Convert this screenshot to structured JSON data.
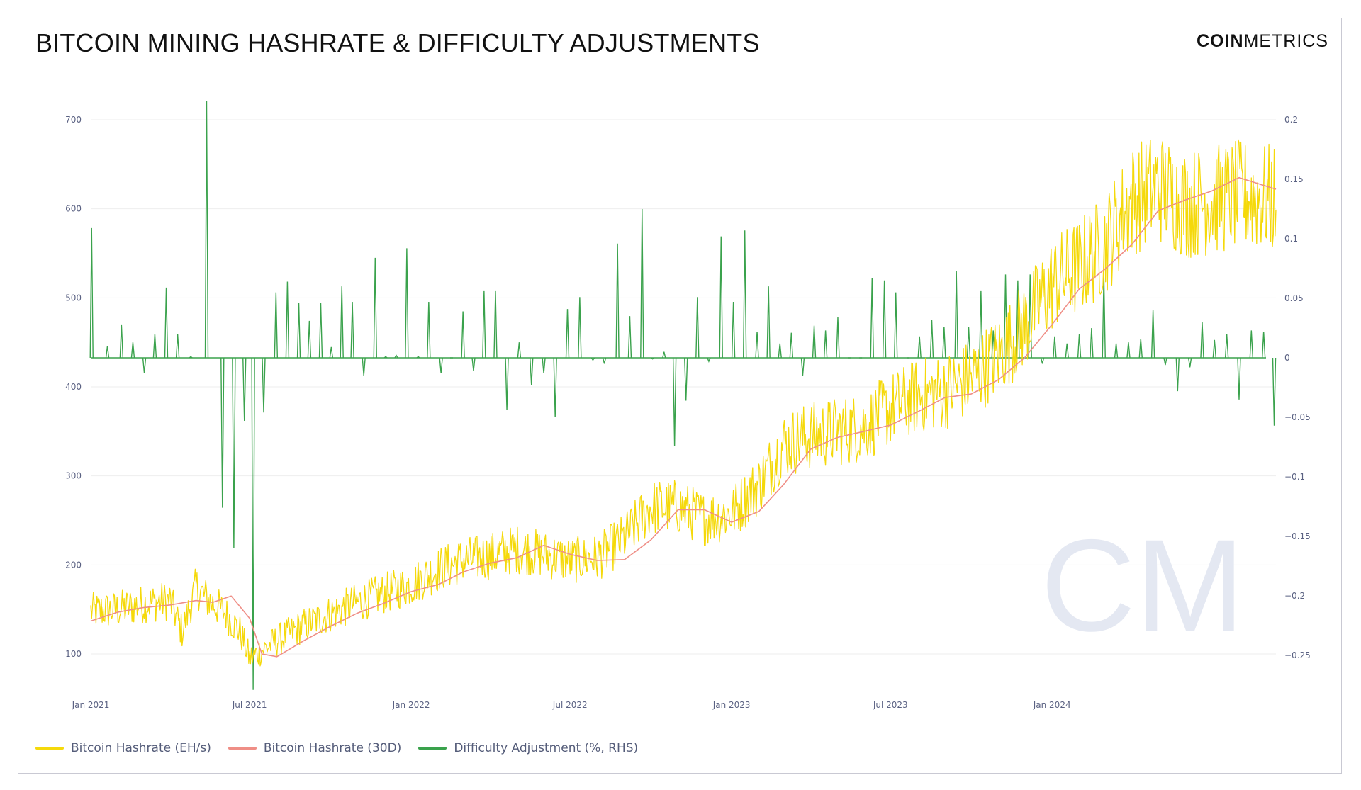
{
  "header": {
    "title": "BITCOIN MINING HASHRATE & DIFFICULTY ADJUSTMENTS",
    "brand_bold": "COIN",
    "brand_light": "METRICS"
  },
  "watermark": "CM",
  "colors": {
    "hashrate": "#f5d90a",
    "hashrate_30d": "#ef8e86",
    "difficulty": "#3aa24c",
    "axis_text": "#5a6182",
    "gridline": "#eeeeee",
    "watermark": "#e4e8f2"
  },
  "legend": {
    "hashrate": "Bitcoin Hashrate (EH/s)",
    "hashrate_30d": "Bitcoin Hashrate (30D)",
    "difficulty": "Difficulty Adjustment (%, RHS)"
  },
  "chart_data": {
    "type": "line",
    "x_range": [
      "2021-01-01",
      "2024-09-12"
    ],
    "x_ticks": [
      "Jan 2021",
      "Jul 2021",
      "Jan 2022",
      "Jul 2022",
      "Jan 2023",
      "Jul 2023",
      "Jan 2024"
    ],
    "y_left": {
      "ticks": [
        "100",
        "200",
        "300",
        "400",
        "500",
        "600",
        "700"
      ],
      "range": [
        60,
        730
      ]
    },
    "y_right": {
      "ticks": [
        "−0.25",
        "−0.2",
        "−0.15",
        "−0.1",
        "−0.05",
        "0",
        "0.05",
        "0.1",
        "0.15",
        "0.2"
      ],
      "range": [
        -0.28,
        0.22
      ]
    },
    "series": [
      {
        "name": "Bitcoin Hashrate (EH/s)",
        "axis": "left",
        "style": "noisy daily line",
        "x": [
          "2021-01-01",
          "2021-02-01",
          "2021-03-01",
          "2021-04-01",
          "2021-04-15",
          "2021-05-01",
          "2021-05-15",
          "2021-06-01",
          "2021-06-20",
          "2021-07-01",
          "2021-08-01",
          "2021-09-01",
          "2021-10-01",
          "2021-11-01",
          "2021-12-01",
          "2022-01-01",
          "2022-02-01",
          "2022-03-01",
          "2022-04-01",
          "2022-05-01",
          "2022-06-01",
          "2022-07-01",
          "2022-08-01",
          "2022-09-01",
          "2022-10-01",
          "2022-11-01",
          "2022-12-01",
          "2023-01-01",
          "2023-02-01",
          "2023-03-01",
          "2023-04-01",
          "2023-05-01",
          "2023-06-01",
          "2023-07-01",
          "2023-08-01",
          "2023-09-01",
          "2023-10-01",
          "2023-11-01",
          "2023-12-01",
          "2024-01-01",
          "2024-02-01",
          "2024-03-01",
          "2024-04-01",
          "2024-05-01",
          "2024-06-01",
          "2024-07-01",
          "2024-08-01",
          "2024-09-12"
        ],
        "y": [
          148,
          150,
          156,
          160,
          125,
          175,
          160,
          148,
          125,
          95,
          115,
          132,
          145,
          158,
          168,
          178,
          195,
          205,
          210,
          218,
          212,
          205,
          208,
          230,
          265,
          265,
          252,
          258,
          290,
          335,
          345,
          350,
          355,
          375,
          390,
          395,
          410,
          435,
          470,
          515,
          535,
          560,
          610,
          625,
          605,
          610,
          615,
          610
        ]
      },
      {
        "name": "Bitcoin Hashrate (30D)",
        "axis": "left",
        "x": [
          "2021-01-01",
          "2021-02-01",
          "2021-03-01",
          "2021-04-01",
          "2021-05-01",
          "2021-05-20",
          "2021-06-10",
          "2021-07-01",
          "2021-07-15",
          "2021-08-01",
          "2021-09-01",
          "2021-10-01",
          "2021-11-01",
          "2021-12-01",
          "2022-01-01",
          "2022-02-01",
          "2022-03-01",
          "2022-04-01",
          "2022-05-01",
          "2022-06-01",
          "2022-07-01",
          "2022-08-01",
          "2022-09-01",
          "2022-10-01",
          "2022-11-01",
          "2022-12-01",
          "2023-01-01",
          "2023-02-01",
          "2023-03-01",
          "2023-04-01",
          "2023-05-01",
          "2023-06-01",
          "2023-07-01",
          "2023-08-01",
          "2023-09-01",
          "2023-10-01",
          "2023-11-01",
          "2023-12-01",
          "2024-01-01",
          "2024-02-01",
          "2024-03-01",
          "2024-04-01",
          "2024-05-01",
          "2024-06-01",
          "2024-07-01",
          "2024-08-01",
          "2024-09-12"
        ],
        "y": [
          137,
          147,
          152,
          155,
          160,
          158,
          165,
          140,
          100,
          97,
          115,
          131,
          146,
          157,
          170,
          178,
          192,
          202,
          208,
          222,
          212,
          205,
          206,
          228,
          262,
          262,
          248,
          260,
          290,
          330,
          343,
          350,
          357,
          372,
          388,
          392,
          408,
          433,
          470,
          510,
          532,
          560,
          598,
          610,
          620,
          635,
          622
        ]
      },
      {
        "name": "Difficulty Adjustment (%, RHS)",
        "axis": "right",
        "style": "spikes from zero",
        "x": [
          "2021-01-02",
          "2021-01-20",
          "2021-02-05",
          "2021-02-18",
          "2021-03-03",
          "2021-03-15",
          "2021-03-28",
          "2021-04-10",
          "2021-04-25",
          "2021-05-13",
          "2021-05-31",
          "2021-06-13",
          "2021-06-25",
          "2021-07-05",
          "2021-07-17",
          "2021-07-31",
          "2021-08-13",
          "2021-08-26",
          "2021-09-07",
          "2021-09-20",
          "2021-10-02",
          "2021-10-14",
          "2021-10-26",
          "2021-11-08",
          "2021-11-21",
          "2021-12-03",
          "2021-12-15",
          "2021-12-27",
          "2022-01-09",
          "2022-01-21",
          "2022-02-04",
          "2022-02-16",
          "2022-03-01",
          "2022-03-13",
          "2022-03-25",
          "2022-04-07",
          "2022-04-20",
          "2022-05-04",
          "2022-05-18",
          "2022-06-01",
          "2022-06-14",
          "2022-06-28",
          "2022-07-12",
          "2022-07-27",
          "2022-08-09",
          "2022-08-24",
          "2022-09-07",
          "2022-09-21",
          "2022-10-03",
          "2022-10-16",
          "2022-10-28",
          "2022-11-10",
          "2022-11-23",
          "2022-12-06",
          "2022-12-20",
          "2023-01-03",
          "2023-01-16",
          "2023-01-30",
          "2023-02-12",
          "2023-02-25",
          "2023-03-10",
          "2023-03-23",
          "2023-04-05",
          "2023-04-18",
          "2023-05-02",
          "2023-05-15",
          "2023-05-28",
          "2023-06-10",
          "2023-06-24",
          "2023-07-07",
          "2023-07-21",
          "2023-08-03",
          "2023-08-17",
          "2023-08-31",
          "2023-09-14",
          "2023-09-28",
          "2023-10-12",
          "2023-10-26",
          "2023-11-09",
          "2023-11-23",
          "2023-12-07",
          "2023-12-21",
          "2024-01-04",
          "2024-01-18",
          "2024-02-01",
          "2024-02-15",
          "2024-02-29",
          "2024-03-14",
          "2024-03-28",
          "2024-04-11",
          "2024-04-25",
          "2024-05-09",
          "2024-05-23",
          "2024-06-06",
          "2024-06-20",
          "2024-07-04",
          "2024-07-18",
          "2024-08-01",
          "2024-08-15",
          "2024-08-29",
          "2024-09-10"
        ],
        "y": [
          0.109,
          0.01,
          0.028,
          0.013,
          -0.013,
          0.02,
          0.059,
          0.02,
          0.001,
          0.216,
          -0.126,
          -0.16,
          -0.053,
          -0.279,
          -0.046,
          0.055,
          0.064,
          0.046,
          0.031,
          0.046,
          0.009,
          0.06,
          0.047,
          -0.015,
          0.084,
          0.001,
          0.002,
          0.092,
          0.001,
          0.047,
          -0.013,
          0.0,
          0.039,
          -0.011,
          0.056,
          0.056,
          -0.044,
          0.013,
          -0.023,
          -0.013,
          -0.05,
          0.041,
          0.051,
          -0.002,
          -0.005,
          0.096,
          0.035,
          0.125,
          -0.001,
          0.005,
          -0.074,
          -0.036,
          0.051,
          -0.003,
          0.102,
          0.047,
          0.107,
          0.022,
          0.06,
          0.012,
          0.021,
          -0.015,
          0.027,
          0.023,
          0.034,
          0.0,
          0.0,
          0.067,
          0.065,
          0.055,
          0.0,
          0.018,
          0.032,
          0.026,
          0.073,
          0.026,
          0.056,
          0.023,
          0.07,
          0.065,
          0.07,
          -0.005,
          0.018,
          0.012,
          0.02,
          0.025,
          0.07,
          0.012,
          0.013,
          0.016,
          0.04,
          -0.006,
          -0.028,
          -0.008,
          0.03,
          0.015,
          0.02,
          -0.035,
          0.023,
          0.022,
          -0.057
        ]
      }
    ]
  }
}
